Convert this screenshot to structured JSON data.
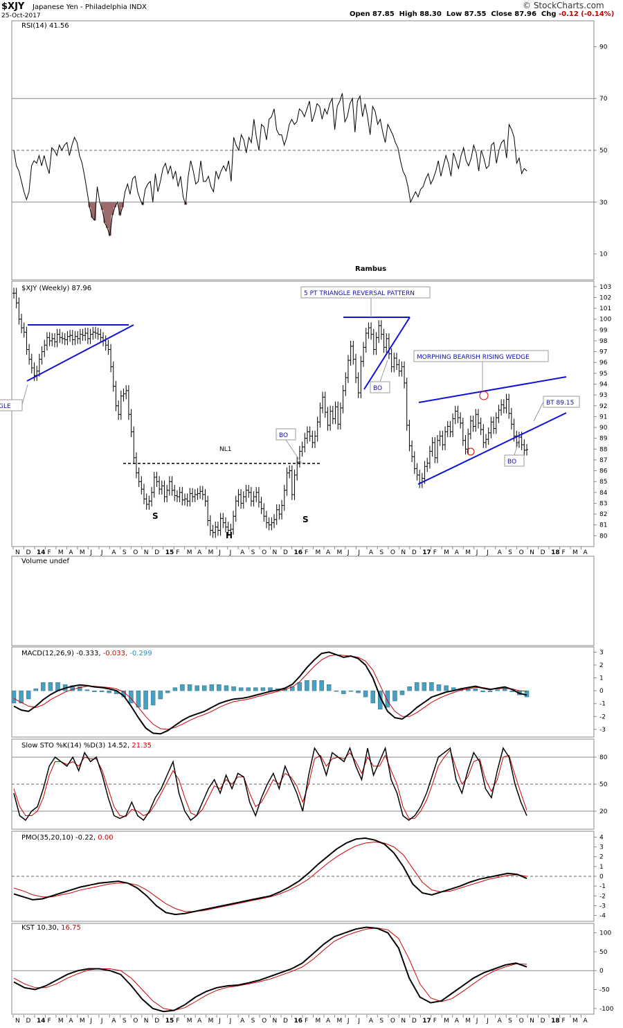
{
  "header": {
    "symbol": "$XJY",
    "description": "Japanese Yen - Philadelphia INDX",
    "date": "25-Oct-2017",
    "open_label": "Open",
    "open": "87.85",
    "high_label": "High",
    "high": "88.30",
    "low_label": "Low",
    "low": "87.55",
    "close_label": "Close",
    "close": "87.96",
    "chg_label": "Chg",
    "chg": "-0.12 (-0.14%)",
    "logo": "© StockCharts.com"
  },
  "x_axis": {
    "labels": [
      "N",
      "D",
      "14",
      "F",
      "M",
      "A",
      "M",
      "J",
      "J",
      "A",
      "S",
      "O",
      "N",
      "D",
      "15",
      "F",
      "M",
      "A",
      "M",
      "J",
      "J",
      "A",
      "S",
      "O",
      "N",
      "D",
      "16",
      "F",
      "M",
      "A",
      "M",
      "J",
      "J",
      "A",
      "S",
      "O",
      "N",
      "D",
      "17",
      "F",
      "M",
      "A",
      "M",
      "J",
      "J",
      "A",
      "S",
      "O",
      "N",
      "D",
      "18",
      "F",
      "M",
      "A"
    ],
    "year_labels": [
      "14",
      "15",
      "16",
      "17",
      "18"
    ]
  },
  "colors": {
    "red": "#cc0000",
    "blue": "#1010dd",
    "hist": "#4a9fc0",
    "rsi_fill": "#9b6a6a",
    "label_blue": "#1010aa"
  },
  "chart_data": [
    {
      "type": "line",
      "name": "rsi",
      "title": "RSI(14) 41.56",
      "ylim": [
        0,
        100
      ],
      "ticks": [
        10,
        30,
        50,
        70,
        90
      ],
      "levels": [
        30,
        50,
        70
      ],
      "annotation": "Rambus",
      "values": [
        50,
        44,
        42,
        38,
        34,
        31,
        34,
        44,
        46,
        45,
        48,
        44,
        48,
        44,
        41,
        51,
        50,
        48,
        52,
        50,
        52,
        53,
        48,
        52,
        55,
        53,
        48,
        45,
        40,
        34,
        28,
        24,
        23,
        36,
        30,
        27,
        22,
        20,
        17,
        25,
        28,
        30,
        25,
        28,
        34,
        37,
        33,
        39,
        40,
        34,
        31,
        29,
        35,
        37,
        38,
        30,
        41,
        34,
        38,
        43,
        45,
        41,
        44,
        39,
        42,
        36,
        40,
        32,
        29,
        40,
        46,
        42,
        37,
        38,
        46,
        38,
        38,
        40,
        36,
        34,
        42,
        39,
        42,
        44,
        42,
        46,
        38,
        55,
        52,
        50,
        56,
        54,
        49,
        55,
        53,
        62,
        55,
        50,
        60,
        59,
        54,
        62,
        63,
        66,
        58,
        56,
        56,
        52,
        55,
        60,
        62,
        60,
        61,
        66,
        65,
        63,
        66,
        69,
        61,
        64,
        68,
        67,
        62,
        66,
        64,
        68,
        70,
        58,
        67,
        69,
        72,
        61,
        63,
        68,
        70,
        57,
        69,
        71,
        63,
        68,
        63,
        56,
        67,
        65,
        60,
        62,
        57,
        53,
        60,
        58,
        56,
        53,
        51,
        46,
        42,
        40,
        36,
        30,
        32,
        34,
        32,
        35,
        36,
        39,
        41,
        37,
        39,
        42,
        46,
        40,
        44,
        48,
        45,
        40,
        49,
        46,
        43,
        48,
        51,
        46,
        44,
        47,
        52,
        49,
        42,
        50,
        47,
        43,
        44,
        52,
        53,
        45,
        50,
        53,
        54,
        47,
        60,
        58,
        55,
        45,
        47,
        41,
        43,
        42
      ]
    },
    {
      "type": "ohlc",
      "name": "price",
      "title": "$XJY (Weekly) 87.96",
      "ylim": [
        79,
        103.5
      ],
      "ticks": [
        80,
        81,
        82,
        83,
        84,
        85,
        86,
        87,
        88,
        89,
        90,
        91,
        92,
        93,
        94,
        95,
        96,
        97,
        98,
        99,
        100,
        101,
        102,
        103
      ],
      "closes": [
        102.4,
        101.5,
        100.0,
        99.2,
        98.8,
        97.2,
        96.3,
        95.5,
        94.8,
        95.2,
        96.3,
        97.0,
        97.6,
        98.3,
        98.0,
        98.2,
        97.9,
        98.6,
        98.3,
        98.2,
        98.1,
        98.4,
        98.5,
        98.1,
        98.4,
        98.2,
        98.6,
        98.5,
        98.7,
        98.2,
        98.6,
        98.8,
        98.7,
        98.6,
        98.3,
        98.0,
        97.6,
        97.2,
        95.6,
        93.8,
        92.0,
        91.2,
        92.9,
        93.1,
        93.4,
        91.2,
        89.6,
        87.2,
        85.8,
        85.0,
        84.3,
        83.4,
        82.9,
        83.2,
        84.0,
        85.4,
        85.0,
        84.3,
        84.6,
        83.6,
        84.2,
        85.0,
        84.2,
        83.7,
        83.6,
        84.0,
        83.3,
        83.4,
        83.2,
        83.9,
        83.6,
        83.8,
        83.9,
        84.1,
        83.8,
        83.2,
        81.4,
        80.5,
        80.3,
        80.8,
        80.5,
        81.6,
        81.2,
        80.8,
        80.5,
        80.6,
        81.8,
        83.2,
        83.8,
        83.0,
        83.6,
        84.2,
        84.0,
        83.2,
        83.6,
        84.0,
        83.1,
        82.5,
        81.8,
        81.2,
        81.0,
        81.2,
        81.5,
        82.4,
        82.0,
        82.8,
        84.2,
        85.8,
        86.0,
        83.8,
        85.6,
        86.8,
        87.8,
        88.2,
        89.0,
        89.6,
        89.2,
        88.6,
        89.2,
        90.5,
        91.8,
        92.8,
        91.4,
        90.2,
        91.5,
        90.8,
        91.9,
        90.3,
        91.8,
        93.4,
        94.6,
        96.2,
        97.5,
        96.3,
        94.6,
        93.2,
        96.1,
        97.4,
        98.7,
        99.2,
        98.6,
        97.2,
        98.3,
        99.4,
        98.6,
        97.4,
        98.2,
        96.8,
        95.6,
        96.4,
        95.8,
        95.2,
        95.6,
        94.1,
        90.2,
        88.3,
        87.3,
        86.2,
        85.6,
        84.9,
        85.3,
        86.4,
        86.7,
        87.8,
        88.6,
        87.2,
        88.8,
        89.2,
        88.4,
        89.6,
        90.1,
        89.6,
        90.8,
        91.5,
        90.9,
        90.4,
        88.8,
        88.0,
        89.4,
        90.6,
        90.1,
        91.2,
        90.4,
        89.8,
        88.6,
        88.9,
        89.5,
        90.5,
        89.9,
        90.9,
        91.6,
        92.1,
        91.8,
        92.6,
        91.3,
        90.3,
        89.2,
        88.6,
        89.1,
        88.4,
        87.9,
        87.96
      ],
      "annotations": [
        {
          "text": "5 PT TRIANGLE REVERSAL PATTERN",
          "kind": "box"
        },
        {
          "text": "MORPHING BEARISH RISING WEDGE",
          "kind": "box"
        },
        {
          "text": "BT 89.15",
          "kind": "box"
        },
        {
          "text": "BO",
          "kind": "box",
          "id": "bo1"
        },
        {
          "text": "BO",
          "kind": "box",
          "id": "bo2"
        },
        {
          "text": "BO",
          "kind": "box",
          "id": "bo3"
        },
        {
          "text": "GLE",
          "kind": "box"
        },
        {
          "text": "NL1",
          "kind": "text"
        },
        {
          "text": "S",
          "kind": "text",
          "id": "s1"
        },
        {
          "text": "H",
          "kind": "text"
        },
        {
          "text": "S",
          "kind": "text",
          "id": "s2"
        }
      ]
    },
    {
      "type": "bar",
      "name": "volume",
      "title": "Volume undef"
    },
    {
      "type": "line",
      "name": "macd",
      "title_main": "MACD(12,26,9) -0.333,",
      "title_sig": " -0.033,",
      "title_hist": " -0.299",
      "ylim": [
        -3.6,
        3.4
      ],
      "ticks": [
        3,
        2,
        1,
        0,
        -1,
        -2,
        -3
      ],
      "macd": [
        -1.2,
        -1.5,
        -1.6,
        -1.2,
        -0.7,
        -0.3,
        0,
        0.2,
        0.35,
        0.45,
        0.4,
        0.3,
        0.25,
        0.15,
        0,
        -0.4,
        -1.2,
        -2.1,
        -2.9,
        -3.3,
        -3.35,
        -3.1,
        -2.7,
        -2.3,
        -2.0,
        -1.8,
        -1.6,
        -1.3,
        -1.0,
        -0.8,
        -0.65,
        -0.6,
        -0.5,
        -0.35,
        -0.2,
        -0.05,
        0.05,
        0.2,
        0.5,
        1.1,
        1.8,
        2.4,
        2.9,
        3.0,
        2.8,
        2.6,
        2.7,
        2.5,
        2.0,
        1.0,
        -0.5,
        -1.6,
        -2.1,
        -2.2,
        -1.8,
        -1.3,
        -0.9,
        -0.5,
        -0.3,
        -0.1,
        0,
        0.15,
        0.25,
        0.35,
        0.2,
        0.1,
        0.2,
        0.3,
        0.1,
        -0.2,
        -0.33
      ],
      "signal": [
        -0.6,
        -0.9,
        -1.2,
        -1.3,
        -1.1,
        -0.7,
        -0.4,
        -0.1,
        0.1,
        0.25,
        0.35,
        0.35,
        0.3,
        0.25,
        0.15,
        -0.1,
        -0.6,
        -1.3,
        -2.0,
        -2.6,
        -2.95,
        -3.0,
        -2.85,
        -2.6,
        -2.3,
        -2.05,
        -1.85,
        -1.6,
        -1.3,
        -1.05,
        -0.85,
        -0.75,
        -0.65,
        -0.5,
        -0.35,
        -0.2,
        -0.05,
        0.1,
        0.3,
        0.7,
        1.3,
        1.9,
        2.4,
        2.7,
        2.8,
        2.75,
        2.7,
        2.6,
        2.3,
        1.6,
        0.4,
        -0.8,
        -1.6,
        -2.0,
        -2.0,
        -1.7,
        -1.3,
        -0.9,
        -0.6,
        -0.35,
        -0.15,
        0.05,
        0.15,
        0.25,
        0.25,
        0.15,
        0.15,
        0.2,
        0.15,
        0,
        -0.03
      ]
    },
    {
      "type": "line",
      "name": "stochastic",
      "title_main": "Slow STO %K(14) %D(3) 14.52,",
      "title_d": " 21.35",
      "ylim": [
        0,
        100
      ],
      "ticks": [
        80,
        50,
        20
      ],
      "levels": [
        80,
        50,
        20
      ],
      "k": [
        40,
        15,
        10,
        20,
        25,
        45,
        70,
        80,
        75,
        70,
        80,
        65,
        85,
        75,
        80,
        60,
        35,
        15,
        12,
        15,
        30,
        15,
        10,
        20,
        35,
        45,
        60,
        75,
        40,
        20,
        10,
        15,
        30,
        45,
        55,
        40,
        60,
        45,
        62,
        58,
        30,
        15,
        35,
        50,
        62,
        45,
        70,
        55,
        40,
        20,
        60,
        90,
        80,
        60,
        85,
        80,
        75,
        90,
        70,
        55,
        90,
        60,
        75,
        90,
        55,
        40,
        15,
        10,
        15,
        25,
        40,
        60,
        80,
        85,
        90,
        55,
        40,
        65,
        85,
        75,
        45,
        35,
        65,
        90,
        80,
        50,
        30,
        15
      ],
      "d": [
        45,
        25,
        15,
        15,
        20,
        35,
        60,
        75,
        75,
        72,
        75,
        70,
        80,
        78,
        78,
        65,
        45,
        25,
        15,
        14,
        22,
        20,
        15,
        18,
        28,
        40,
        52,
        65,
        55,
        35,
        18,
        15,
        22,
        35,
        48,
        45,
        55,
        50,
        58,
        58,
        40,
        25,
        30,
        42,
        55,
        50,
        62,
        58,
        48,
        30,
        50,
        78,
        82,
        70,
        78,
        80,
        78,
        85,
        75,
        62,
        80,
        70,
        70,
        82,
        65,
        50,
        25,
        12,
        12,
        20,
        32,
        50,
        70,
        80,
        88,
        68,
        50,
        58,
        75,
        78,
        55,
        42,
        55,
        80,
        82,
        60,
        40,
        21
      ]
    },
    {
      "type": "line",
      "name": "pmo",
      "title_main": "PMO(35,20,10) -0.22,",
      "title_sig": " 0.00",
      "ylim": [
        -4.6,
        4.6
      ],
      "ticks": [
        4,
        3,
        2,
        1,
        0,
        -1,
        -2,
        -3,
        -4
      ],
      "pmo": [
        -1.8,
        -2.1,
        -2.4,
        -2.3,
        -2.0,
        -1.7,
        -1.4,
        -1.1,
        -0.9,
        -0.7,
        -0.6,
        -0.5,
        -0.7,
        -1.2,
        -2.0,
        -3.0,
        -3.7,
        -3.9,
        -3.8,
        -3.6,
        -3.4,
        -3.2,
        -3.0,
        -2.8,
        -2.6,
        -2.4,
        -2.2,
        -2.0,
        -1.6,
        -1.1,
        -0.5,
        0.3,
        1.2,
        2.0,
        2.8,
        3.4,
        3.8,
        3.9,
        3.7,
        3.3,
        2.4,
        1.0,
        -0.8,
        -1.7,
        -1.9,
        -1.6,
        -1.3,
        -1.0,
        -0.6,
        -0.3,
        -0.1,
        0.1,
        0.3,
        0.2,
        -0.22
      ],
      "signal": [
        -1.2,
        -1.5,
        -1.9,
        -2.1,
        -2.1,
        -1.9,
        -1.7,
        -1.4,
        -1.2,
        -1.0,
        -0.8,
        -0.7,
        -0.7,
        -0.9,
        -1.4,
        -2.1,
        -2.8,
        -3.3,
        -3.6,
        -3.6,
        -3.5,
        -3.3,
        -3.1,
        -2.9,
        -2.7,
        -2.5,
        -2.3,
        -2.1,
        -1.8,
        -1.4,
        -0.9,
        -0.3,
        0.5,
        1.3,
        2.0,
        2.6,
        3.1,
        3.4,
        3.5,
        3.4,
        3.0,
        2.2,
        0.8,
        -0.6,
        -1.4,
        -1.6,
        -1.5,
        -1.2,
        -0.9,
        -0.6,
        -0.3,
        -0.1,
        0.1,
        0.15,
        0.0
      ]
    },
    {
      "type": "line",
      "name": "kst",
      "title_main": "KST 10.30,",
      "title_sig": " 16.75",
      "ylim": [
        -115,
        125
      ],
      "ticks": [
        100,
        50,
        0,
        -50,
        -100
      ],
      "kst": [
        -30,
        -45,
        -50,
        -40,
        -25,
        -10,
        0,
        5,
        5,
        0,
        -10,
        -40,
        -75,
        -100,
        -108,
        -105,
        -90,
        -70,
        -55,
        -45,
        -40,
        -38,
        -32,
        -25,
        -15,
        -5,
        5,
        20,
        45,
        70,
        90,
        100,
        110,
        115,
        112,
        100,
        60,
        -20,
        -70,
        -85,
        -80,
        -60,
        -40,
        -20,
        -5,
        5,
        15,
        20,
        10
      ],
      "signal": [
        -20,
        -35,
        -45,
        -45,
        -35,
        -20,
        -8,
        2,
        5,
        5,
        0,
        -20,
        -50,
        -80,
        -100,
        -105,
        -98,
        -82,
        -65,
        -52,
        -44,
        -40,
        -35,
        -29,
        -22,
        -12,
        -2,
        10,
        30,
        55,
        78,
        92,
        102,
        110,
        113,
        108,
        85,
        30,
        -35,
        -72,
        -82,
        -74,
        -55,
        -35,
        -15,
        0,
        10,
        18,
        17
      ]
    }
  ]
}
